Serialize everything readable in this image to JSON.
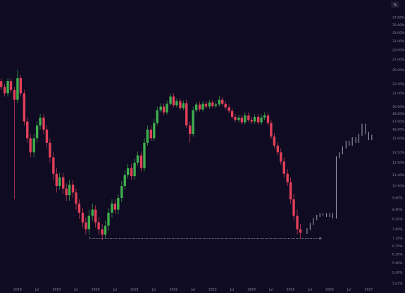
{
  "chart_data": {
    "type": "candlestick",
    "log_scale": true,
    "scale_mode": "%",
    "xlim": [
      2017.55,
      2027.48
    ],
    "xticks": [
      {
        "value": 2018,
        "label": "2018"
      },
      {
        "value": 2018.5,
        "label": "Jul"
      },
      {
        "value": 2019,
        "label": "2019"
      },
      {
        "value": 2019.5,
        "label": "Jul"
      },
      {
        "value": 2020,
        "label": "2020"
      },
      {
        "value": 2020.5,
        "label": "Jul"
      },
      {
        "value": 2021,
        "label": "2021"
      },
      {
        "value": 2021.5,
        "label": "Jul"
      },
      {
        "value": 2022,
        "label": "2022"
      },
      {
        "value": 2022.5,
        "label": "Jul"
      },
      {
        "value": 2023,
        "label": "2023"
      },
      {
        "value": 2023.5,
        "label": "Jul"
      },
      {
        "value": 2024,
        "label": "2024"
      },
      {
        "value": 2024.5,
        "label": "Jul"
      },
      {
        "value": 2025,
        "label": "2025"
      },
      {
        "value": 2025.5,
        "label": "Jul"
      },
      {
        "value": 2026,
        "label": "2026"
      },
      {
        "value": 2026.5,
        "label": "Jul"
      },
      {
        "value": 2027,
        "label": "2027"
      }
    ],
    "ylim": [
      5,
      40
    ],
    "yticks": [
      {
        "value": 5.07,
        "label": "5.07%"
      },
      {
        "value": 5.5,
        "label": "5.50%"
      },
      {
        "value": 5.9,
        "label": "5.90%"
      },
      {
        "value": 6.3,
        "label": "6.30%"
      },
      {
        "value": 6.7,
        "label": "6.70%"
      },
      {
        "value": 7.1,
        "label": "7.10%"
      },
      {
        "value": 7.6,
        "label": "7.60%"
      },
      {
        "value": 8.2,
        "label": "8.20%"
      },
      {
        "value": 8.8,
        "label": "8.80%"
      },
      {
        "value": 9.6,
        "label": "9.60%"
      },
      {
        "value": 10.5,
        "label": "10.50%"
      },
      {
        "value": 11.4,
        "label": "11.40%"
      },
      {
        "value": 12.5,
        "label": "12.50%"
      },
      {
        "value": 13.5,
        "label": "13.50%"
      },
      {
        "value": 15,
        "label": "15.00%"
      },
      {
        "value": 16,
        "label": "16.00%"
      },
      {
        "value": 17,
        "label": "17.00%"
      },
      {
        "value": 18,
        "label": "18.00%"
      },
      {
        "value": 19,
        "label": "19.00%"
      },
      {
        "value": 21,
        "label": "21.00%"
      },
      {
        "value": 22.5,
        "label": "22.50%"
      },
      {
        "value": 25,
        "label": "25.00%"
      },
      {
        "value": 27,
        "label": "27.00%"
      },
      {
        "value": 29,
        "label": "29.00%"
      },
      {
        "value": 31,
        "label": "31.00%"
      },
      {
        "value": 33,
        "label": "33.00%"
      },
      {
        "value": 35,
        "label": "35.00%"
      },
      {
        "value": 37,
        "label": "37.00%"
      }
    ],
    "up_color": "#3fae4e",
    "down_color": "#e2405a",
    "candles": {
      "x": [
        2017.58,
        2017.67,
        2017.75,
        2017.83,
        2017.92,
        2018,
        2018.08,
        2018.17,
        2018.25,
        2018.33,
        2018.42,
        2018.5,
        2018.58,
        2018.67,
        2018.75,
        2018.83,
        2018.92,
        2019,
        2019.08,
        2019.17,
        2019.25,
        2019.33,
        2019.42,
        2019.5,
        2019.58,
        2019.67,
        2019.75,
        2019.83,
        2019.92,
        2020,
        2020.08,
        2020.17,
        2020.25,
        2020.33,
        2020.42,
        2020.5,
        2020.58,
        2020.67,
        2020.75,
        2020.83,
        2020.92,
        2021,
        2021.08,
        2021.17,
        2021.25,
        2021.33,
        2021.42,
        2021.5,
        2021.58,
        2021.67,
        2021.75,
        2021.83,
        2021.92,
        2022,
        2022.08,
        2022.17,
        2022.25,
        2022.33,
        2022.42,
        2022.5,
        2022.58,
        2022.67,
        2022.75,
        2022.83,
        2022.92,
        2023,
        2023.08,
        2023.17,
        2023.25,
        2023.33,
        2023.42,
        2023.5,
        2023.58,
        2023.67,
        2023.75,
        2023.83,
        2023.92,
        2024,
        2024.08,
        2024.17,
        2024.25,
        2024.33,
        2024.42,
        2024.5,
        2024.58,
        2024.67,
        2024.75,
        2024.83,
        2024.92,
        2025,
        2025.08,
        2025.17,
        2025.25
      ],
      "open": [
        23,
        22,
        21,
        23,
        21.5,
        20,
        23.5,
        21,
        17,
        15,
        13.5,
        15,
        16.5,
        17.5,
        16,
        14.5,
        13,
        11.5,
        10.5,
        11.2,
        10.3,
        9.8,
        10.6,
        10,
        9.2,
        8.6,
        8.0,
        7.6,
        8.4,
        8.8,
        8.0,
        7.6,
        7.3,
        7.8,
        8.6,
        9.2,
        8.8,
        9.6,
        10.5,
        11.4,
        12,
        11.3,
        12.5,
        13.2,
        12.0,
        14.5,
        16,
        15,
        16.8,
        18.5,
        19,
        18.2,
        19.4,
        20.5,
        19.2,
        19.8,
        18.8,
        19.5,
        16.5,
        15.5,
        18.5,
        19.3,
        18.6,
        19.4,
        19.0,
        19.6,
        19.1,
        19.3,
        20.0,
        19.4,
        18.9,
        18.4,
        17.6,
        17.2,
        17.5,
        16.9,
        17.8,
        17.2,
        17.0,
        17.6,
        16.9,
        17.5,
        17.8,
        16.8,
        15.2,
        14.2,
        13.5,
        12.6,
        11.5,
        10.8,
        9.5,
        8.4,
        7.6
      ],
      "high": [
        23.5,
        22.5,
        23.5,
        23.5,
        22,
        25,
        24,
        21.5,
        17.5,
        15.5,
        15.5,
        17,
        18,
        18,
        16.5,
        15,
        13.5,
        12,
        11.6,
        11.6,
        10.7,
        11,
        11,
        10.3,
        9.5,
        8.9,
        8.3,
        8.8,
        9.2,
        9.1,
        8.3,
        7.9,
        8.1,
        8.9,
        9.5,
        9.5,
        9.9,
        10.9,
        11.8,
        12.4,
        12.4,
        12.9,
        13.6,
        13.6,
        15,
        16.5,
        16.5,
        17.3,
        19,
        19.5,
        19.5,
        19.9,
        21,
        21,
        20.2,
        20.2,
        19.9,
        20,
        17,
        19,
        19.7,
        19.7,
        19.8,
        19.8,
        20,
        20,
        19.7,
        20.6,
        20.4,
        19.8,
        19.3,
        18.8,
        18,
        17.9,
        17.9,
        18.2,
        18.2,
        17.6,
        18,
        18,
        17.9,
        18.2,
        18.2,
        17.2,
        15.6,
        14.6,
        13.9,
        13,
        11.9,
        11.2,
        9.9,
        8.8,
        7.9
      ],
      "low": [
        21.5,
        20.5,
        20.5,
        21,
        9.5,
        19.5,
        20.5,
        16.5,
        14.5,
        13,
        13,
        14.5,
        16,
        15.5,
        14,
        12.5,
        11,
        10,
        10.2,
        9.9,
        9.4,
        9.4,
        9.6,
        8.8,
        8.2,
        7.7,
        7.3,
        7.3,
        8.1,
        7.7,
        7.3,
        7.0,
        7.1,
        7.5,
        8.3,
        8.5,
        8.5,
        9.3,
        10.2,
        11.1,
        11,
        11,
        12.2,
        11.7,
        11.7,
        14.2,
        14.7,
        14.7,
        16.5,
        18.2,
        17.8,
        17.9,
        19.1,
        18.9,
        18.9,
        18.5,
        18.5,
        16.2,
        14.5,
        15.2,
        18.2,
        18.3,
        18.3,
        18.7,
        18.7,
        18.8,
        18.8,
        19,
        19.1,
        18.6,
        18.1,
        17.3,
        16.9,
        16.9,
        16.6,
        16.6,
        16.9,
        16.7,
        16.7,
        16.6,
        16.6,
        17.2,
        16.5,
        14.9,
        13.9,
        13.2,
        12.3,
        11.2,
        10.5,
        9.2,
        8.1,
        7.3,
        7.1
      ],
      "close": [
        22,
        21,
        23,
        21.5,
        20,
        23.5,
        21,
        17,
        15,
        13.5,
        15,
        16.5,
        17.5,
        16,
        14.5,
        13,
        11.5,
        10.5,
        11.2,
        10.3,
        9.8,
        10.6,
        10,
        9.2,
        8.6,
        8.0,
        7.6,
        8.4,
        8.8,
        8.0,
        7.6,
        7.3,
        7.8,
        8.6,
        9.2,
        8.8,
        9.6,
        10.5,
        11.4,
        12,
        11.3,
        12.5,
        13.2,
        12.0,
        14.5,
        16,
        15,
        16.8,
        18.5,
        19,
        18.2,
        19.4,
        20.5,
        19.2,
        19.8,
        18.8,
        19.5,
        16.5,
        15.5,
        18.5,
        19.3,
        18.6,
        19.4,
        19.0,
        19.6,
        19.1,
        19.3,
        20.0,
        19.4,
        18.9,
        18.4,
        17.6,
        17.2,
        17.5,
        16.9,
        17.8,
        17.2,
        17.0,
        17.6,
        16.9,
        17.5,
        17.8,
        16.8,
        15.2,
        14.2,
        13.5,
        12.6,
        11.5,
        10.8,
        9.5,
        8.4,
        7.6,
        7.4
      ]
    },
    "projection": {
      "color": "#a3a3b2",
      "x": [
        2025.42,
        2025.5,
        2025.58,
        2025.67,
        2025.75,
        2025.83,
        2025.92,
        2026,
        2026.08,
        2026.17,
        2026.25,
        2026.33,
        2026.42,
        2026.5,
        2026.58,
        2026.67,
        2026.75,
        2026.83,
        2026.92,
        2027,
        2027.08
      ],
      "open": [
        7.4,
        7.6,
        7.9,
        8.2,
        8.4,
        8.5,
        8.5,
        8.4,
        8.5,
        8.3,
        13.0,
        13.4,
        14.0,
        14.6,
        14.3,
        15.0,
        14.6,
        15.4,
        16.6,
        15.6,
        14.9
      ],
      "close": [
        7.6,
        7.9,
        8.2,
        8.4,
        8.5,
        8.5,
        8.4,
        8.5,
        8.3,
        13.0,
        13.4,
        14.0,
        14.6,
        14.3,
        15.0,
        14.6,
        15.4,
        16.6,
        15.6,
        14.9,
        15.3
      ]
    },
    "support_line": {
      "color": "#b4b4c2",
      "y": 7.1,
      "x": [
        2019.85,
        2025.78
      ]
    }
  }
}
